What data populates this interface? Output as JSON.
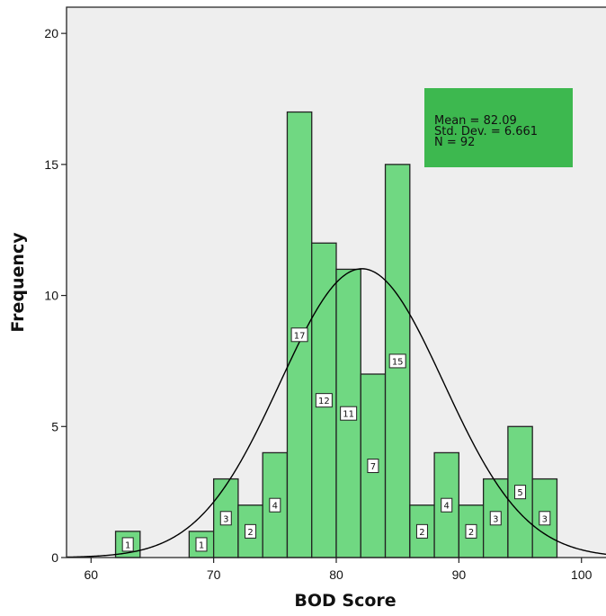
{
  "chart_data": {
    "type": "bar",
    "subtype": "histogram",
    "title": "",
    "xlabel": "BOD Score",
    "ylabel": "Frequency",
    "xlim": [
      58,
      102
    ],
    "ylim": [
      0,
      21
    ],
    "x_ticks": [
      60,
      70,
      80,
      90,
      100
    ],
    "y_ticks": [
      0,
      5,
      10,
      15,
      20
    ],
    "bin_width": 2,
    "bins": [
      {
        "start": 62,
        "end": 64,
        "value": 1
      },
      {
        "start": 68,
        "end": 70,
        "value": 1
      },
      {
        "start": 70,
        "end": 72,
        "value": 3
      },
      {
        "start": 72,
        "end": 74,
        "value": 2
      },
      {
        "start": 74,
        "end": 76,
        "value": 4
      },
      {
        "start": 76,
        "end": 78,
        "value": 17
      },
      {
        "start": 78,
        "end": 80,
        "value": 12
      },
      {
        "start": 80,
        "end": 82,
        "value": 11
      },
      {
        "start": 82,
        "end": 84,
        "value": 7
      },
      {
        "start": 84,
        "end": 86,
        "value": 15
      },
      {
        "start": 86,
        "end": 88,
        "value": 2
      },
      {
        "start": 88,
        "end": 90,
        "value": 4
      },
      {
        "start": 90,
        "end": 92,
        "value": 2
      },
      {
        "start": 92,
        "end": 94,
        "value": 3
      },
      {
        "start": 94,
        "end": 96,
        "value": 5
      },
      {
        "start": 96,
        "end": 98,
        "value": 3
      }
    ],
    "normal_curve": {
      "mean": 82.09,
      "std_dev": 6.661,
      "n": 92
    },
    "stats_box": {
      "mean_label": "Mean = 82.09",
      "std_label": "Std. Dev. = 6.661",
      "n_label": "N = 92",
      "position": "top-right"
    },
    "grid": false,
    "colors": {
      "bar_fill": "#70D882",
      "bar_stroke": "#222222",
      "plot_background": "#EEEEEE",
      "stats_box_fill": "#3DB84F",
      "curve": "#000000"
    }
  }
}
